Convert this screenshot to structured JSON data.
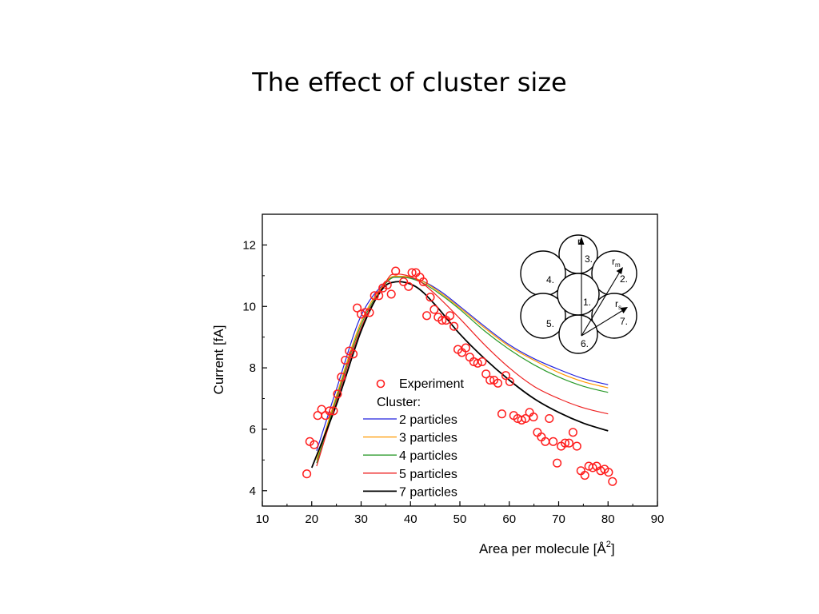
{
  "slide": {
    "title": "The effect of cluster size"
  },
  "chart_data": {
    "type": "scatter",
    "xlabel": "Area per molecule [Å²]",
    "xlabel_main": "Area per molecule [Å",
    "xlabel_sup": "2",
    "xlabel_end": "]",
    "ylabel": "Current [fA]",
    "xlim": [
      10,
      90
    ],
    "ylim": [
      3.5,
      13
    ],
    "xticks": [
      10,
      20,
      30,
      40,
      50,
      60,
      70,
      80,
      90
    ],
    "yticks": [
      4,
      6,
      8,
      10,
      12
    ],
    "grid": false,
    "legend": {
      "position": "bottom-left",
      "header": "Cluster:"
    },
    "experiment": {
      "name": "Experiment",
      "color": "#ff2020",
      "points": [
        [
          19.0,
          4.55
        ],
        [
          19.6,
          5.6
        ],
        [
          20.5,
          5.5
        ],
        [
          21.2,
          6.45
        ],
        [
          22.0,
          6.65
        ],
        [
          22.8,
          6.45
        ],
        [
          23.6,
          6.6
        ],
        [
          24.4,
          6.6
        ],
        [
          25.2,
          7.15
        ],
        [
          26.0,
          7.7
        ],
        [
          26.8,
          8.25
        ],
        [
          27.6,
          8.55
        ],
        [
          28.4,
          8.45
        ],
        [
          29.2,
          9.95
        ],
        [
          30.0,
          9.75
        ],
        [
          30.8,
          9.8
        ],
        [
          31.7,
          9.8
        ],
        [
          32.7,
          10.35
        ],
        [
          33.6,
          10.35
        ],
        [
          34.4,
          10.6
        ],
        [
          35.3,
          10.7
        ],
        [
          36.1,
          10.4
        ],
        [
          37.0,
          11.15
        ],
        [
          38.6,
          10.8
        ],
        [
          39.6,
          10.65
        ],
        [
          40.3,
          11.1
        ],
        [
          41.1,
          11.1
        ],
        [
          41.9,
          10.95
        ],
        [
          42.6,
          10.8
        ],
        [
          43.3,
          9.7
        ],
        [
          44.0,
          10.3
        ],
        [
          44.8,
          9.9
        ],
        [
          45.6,
          9.65
        ],
        [
          46.4,
          9.55
        ],
        [
          47.2,
          9.55
        ],
        [
          48.0,
          9.7
        ],
        [
          48.8,
          9.35
        ],
        [
          49.6,
          8.6
        ],
        [
          50.4,
          8.5
        ],
        [
          51.2,
          8.65
        ],
        [
          52.0,
          8.35
        ],
        [
          52.8,
          8.2
        ],
        [
          53.6,
          8.15
        ],
        [
          54.5,
          8.2
        ],
        [
          55.3,
          7.8
        ],
        [
          56.1,
          7.6
        ],
        [
          56.9,
          7.6
        ],
        [
          57.7,
          7.5
        ],
        [
          58.5,
          6.5
        ],
        [
          59.3,
          7.75
        ],
        [
          60.1,
          7.55
        ],
        [
          60.9,
          6.45
        ],
        [
          61.7,
          6.35
        ],
        [
          62.5,
          6.3
        ],
        [
          63.3,
          6.35
        ],
        [
          64.1,
          6.55
        ],
        [
          64.9,
          6.4
        ],
        [
          65.7,
          5.9
        ],
        [
          66.5,
          5.75
        ],
        [
          67.3,
          5.6
        ],
        [
          68.1,
          6.35
        ],
        [
          68.9,
          5.6
        ],
        [
          69.7,
          4.9
        ],
        [
          70.5,
          5.45
        ],
        [
          71.3,
          5.55
        ],
        [
          72.1,
          5.55
        ],
        [
          72.9,
          5.9
        ],
        [
          73.7,
          5.45
        ],
        [
          74.5,
          4.65
        ],
        [
          75.3,
          4.5
        ],
        [
          76.1,
          4.8
        ],
        [
          76.9,
          4.75
        ],
        [
          77.7,
          4.8
        ],
        [
          78.5,
          4.65
        ],
        [
          79.3,
          4.7
        ],
        [
          80.1,
          4.6
        ],
        [
          80.9,
          4.3
        ]
      ]
    },
    "series": [
      {
        "name": "2 particles",
        "color": "#2222dd",
        "x": [
          21,
          25,
          30,
          35,
          38,
          42,
          46,
          50,
          55,
          60,
          65,
          70,
          75,
          80
        ],
        "y": [
          5.3,
          7.3,
          9.7,
          10.8,
          10.95,
          10.85,
          10.5,
          10.0,
          9.35,
          8.75,
          8.3,
          7.95,
          7.65,
          7.45
        ]
      },
      {
        "name": "3 particles",
        "color": "#ff9900",
        "x": [
          21,
          25,
          30,
          35,
          38,
          42,
          46,
          50,
          55,
          60,
          65,
          70,
          75,
          80
        ],
        "y": [
          5.0,
          7.1,
          9.5,
          10.8,
          10.98,
          10.85,
          10.45,
          9.95,
          9.3,
          8.7,
          8.25,
          7.85,
          7.55,
          7.35
        ]
      },
      {
        "name": "4 particles",
        "color": "#2a9a2a",
        "x": [
          21,
          25,
          30,
          35,
          38,
          42,
          46,
          50,
          55,
          60,
          65,
          70,
          75,
          80
        ],
        "y": [
          4.9,
          7.0,
          9.4,
          10.75,
          10.95,
          10.8,
          10.4,
          9.9,
          9.2,
          8.6,
          8.1,
          7.7,
          7.4,
          7.2
        ]
      },
      {
        "name": "5 particles",
        "color": "#ee2222",
        "x": [
          21,
          25,
          30,
          35,
          37,
          41,
          45,
          50,
          55,
          60,
          65,
          70,
          75,
          80
        ],
        "y": [
          4.8,
          6.9,
          9.3,
          10.8,
          11.05,
          10.9,
          10.4,
          9.6,
          8.75,
          8.0,
          7.4,
          7.0,
          6.7,
          6.5
        ]
      },
      {
        "name": "7 particles",
        "color": "#000000",
        "x": [
          20,
          25,
          30,
          34,
          37,
          41,
          45,
          50,
          55,
          60,
          65,
          70,
          75,
          80
        ],
        "y": [
          4.75,
          6.8,
          9.2,
          10.5,
          10.8,
          10.65,
          10.05,
          9.1,
          8.3,
          7.6,
          7.0,
          6.55,
          6.2,
          5.95
        ]
      }
    ],
    "inset": {
      "labels": {
        "c1": "1.",
        "c2": "2.",
        "c3": "3.",
        "c4": "4.",
        "c5": "5.",
        "c6": "6.",
        "c7": "7.",
        "rl": "r",
        "rl_sub": "l",
        "rm": "r",
        "rm_sub": "m",
        "rs": "r",
        "rs_sub": "s"
      }
    }
  }
}
